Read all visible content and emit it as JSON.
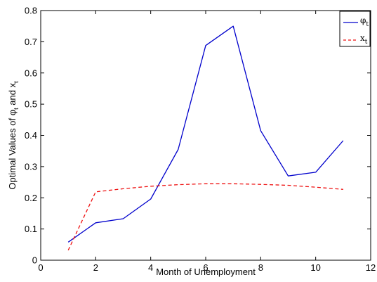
{
  "chart_data": {
    "type": "line",
    "xlabel": "Month of Unemployment",
    "ylabel": "Optimal Values of φ",
    "ylabel_sub1": "t",
    "ylabel_mid": " and x",
    "ylabel_sub2": "t",
    "xlim": [
      0,
      12
    ],
    "ylim": [
      0,
      0.8
    ],
    "x_ticks": [
      0,
      2,
      4,
      6,
      8,
      10,
      12
    ],
    "y_ticks": [
      0,
      0.1,
      0.2,
      0.3,
      0.4,
      0.5,
      0.6,
      0.7,
      0.8
    ],
    "grid": false,
    "legend_position": "top-right",
    "series": [
      {
        "name": "φ",
        "name_sub": "t",
        "color": "#0000cc",
        "style": "solid",
        "x": [
          1,
          2,
          3,
          4,
          5,
          6,
          7,
          8,
          9,
          10,
          11
        ],
        "values": [
          0.058,
          0.12,
          0.133,
          0.196,
          0.355,
          0.688,
          0.75,
          0.415,
          0.27,
          0.282,
          0.383
        ]
      },
      {
        "name": "x",
        "name_sub": "t",
        "color": "#ee1111",
        "style": "dashed",
        "x": [
          1,
          2,
          3,
          4,
          5,
          6,
          7,
          8,
          9,
          10,
          11
        ],
        "values": [
          0.032,
          0.219,
          0.229,
          0.237,
          0.242,
          0.245,
          0.245,
          0.243,
          0.24,
          0.234,
          0.227
        ]
      }
    ]
  }
}
